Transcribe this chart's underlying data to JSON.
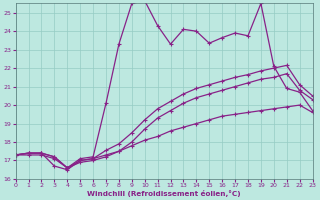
{
  "xlabel": "Windchill (Refroidissement éolien,°C)",
  "background_color": "#bde8e0",
  "grid_color": "#96ccc4",
  "line_color": "#882288",
  "line_width": 0.9,
  "marker_size": 3.0,
  "xlim": [
    0,
    23
  ],
  "ylim": [
    16,
    25.5
  ],
  "xticks": [
    0,
    1,
    2,
    3,
    4,
    5,
    6,
    7,
    8,
    9,
    10,
    11,
    12,
    13,
    14,
    15,
    16,
    17,
    18,
    19,
    20,
    21,
    22,
    23
  ],
  "yticks": [
    16,
    17,
    18,
    19,
    20,
    21,
    22,
    23,
    24,
    25
  ],
  "line1_y": [
    17.3,
    17.4,
    17.4,
    16.7,
    16.5,
    17.0,
    17.1,
    17.3,
    17.5,
    17.8,
    18.1,
    18.3,
    18.6,
    18.8,
    19.0,
    19.2,
    19.4,
    19.5,
    19.6,
    19.7,
    19.8,
    19.9,
    20.0,
    19.6
  ],
  "line2_y": [
    17.3,
    17.3,
    17.3,
    17.1,
    16.6,
    16.9,
    17.0,
    17.2,
    17.5,
    18.0,
    18.7,
    19.3,
    19.7,
    20.1,
    20.4,
    20.6,
    20.8,
    21.0,
    21.2,
    21.4,
    21.5,
    21.7,
    20.8,
    20.3
  ],
  "line3_y": [
    17.3,
    17.4,
    17.4,
    17.2,
    16.6,
    17.0,
    17.1,
    17.55,
    17.9,
    18.5,
    19.2,
    19.8,
    20.2,
    20.6,
    20.9,
    21.1,
    21.3,
    21.5,
    21.65,
    21.85,
    22.0,
    22.15,
    21.1,
    20.5
  ],
  "line4_y": [
    17.3,
    17.4,
    17.4,
    17.2,
    16.6,
    17.1,
    17.2,
    20.1,
    23.3,
    25.5,
    25.65,
    24.3,
    23.3,
    24.1,
    24.0,
    23.35,
    23.65,
    23.9,
    23.75,
    25.5,
    22.1,
    20.9,
    20.7,
    19.7
  ]
}
